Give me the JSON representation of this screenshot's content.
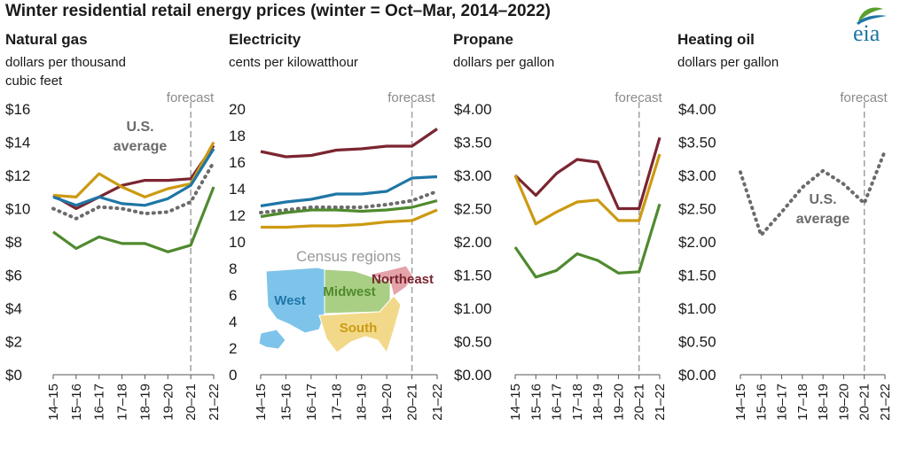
{
  "title": "Winter residential retail energy prices (winter = Oct–Mar, 2014–2022)",
  "logo_text": "eia",
  "colors": {
    "northeast": "#7b2530",
    "west": "#1f76a6",
    "midwest": "#4f8a2e",
    "south": "#cc9a12",
    "us_average": "#6b6b6b",
    "forecast_line": "#a0a0a0",
    "map_west": "#7ec4ea",
    "map_midwest": "#a9cf84",
    "map_south": "#f2d98a",
    "map_northeast": "#e3a3a8",
    "logo_leaf": "#5aa02c",
    "logo_blue": "#1f76a6"
  },
  "panels": [
    {
      "name": "Natural gas",
      "unit_lines": [
        "dollars per thousand",
        "cubic feet"
      ]
    },
    {
      "name": "Electricity",
      "unit_lines": [
        "cents per kilowatthour"
      ]
    },
    {
      "name": "Propane",
      "unit_lines": [
        "dollars per gallon"
      ]
    },
    {
      "name": "Heating oil",
      "unit_lines": [
        "dollars per gallon"
      ]
    }
  ],
  "chart_data": [
    {
      "type": "line",
      "title": "Natural gas",
      "ylabel": "dollars per thousand cubic feet",
      "categories": [
        "14–15",
        "15–16",
        "16–17",
        "17–18",
        "18–19",
        "19–20",
        "20–21",
        "21–22"
      ],
      "ylim": [
        0,
        16
      ],
      "yticks": [
        0,
        2,
        4,
        6,
        8,
        10,
        12,
        14,
        16
      ],
      "ytick_labels": [
        "$0",
        "$2",
        "$4",
        "$6",
        "$8",
        "$10",
        "$12",
        "$14",
        "$16"
      ],
      "forecast_label": "forecast",
      "forecast_at": "20–21",
      "series": [
        {
          "region": "northeast",
          "style": "solid",
          "values": [
            10.8,
            10.0,
            10.7,
            11.4,
            11.7,
            11.7,
            11.8,
            13.8
          ]
        },
        {
          "region": "south",
          "style": "solid",
          "values": [
            10.8,
            10.7,
            12.1,
            11.3,
            10.7,
            11.2,
            11.5,
            14.0
          ]
        },
        {
          "region": "west",
          "style": "solid",
          "values": [
            10.7,
            10.2,
            10.7,
            10.3,
            10.2,
            10.6,
            11.4,
            13.6
          ]
        },
        {
          "region": "us_average",
          "style": "dotted",
          "values": [
            10.0,
            9.4,
            10.1,
            10.0,
            9.7,
            9.8,
            10.4,
            12.8
          ]
        },
        {
          "region": "midwest",
          "style": "solid",
          "values": [
            8.6,
            7.6,
            8.3,
            7.9,
            7.9,
            7.4,
            7.8,
            11.3
          ]
        }
      ],
      "annotations": [
        {
          "text_lines": [
            "U.S.",
            "average"
          ],
          "series": "us_average"
        }
      ]
    },
    {
      "type": "line",
      "title": "Electricity",
      "ylabel": "cents per kilowatthour",
      "categories": [
        "14–15",
        "15–16",
        "16–17",
        "17–18",
        "18–19",
        "19–20",
        "20–21",
        "21–22"
      ],
      "ylim": [
        0,
        20
      ],
      "yticks": [
        0,
        2,
        4,
        6,
        8,
        10,
        12,
        14,
        16,
        18,
        20
      ],
      "ytick_labels": [
        "0",
        "2",
        "4",
        "6",
        "8",
        "10",
        "12",
        "14",
        "16",
        "18",
        "20"
      ],
      "forecast_label": "forecast",
      "forecast_at": "20–21",
      "series": [
        {
          "region": "northeast",
          "style": "solid",
          "values": [
            16.8,
            16.4,
            16.5,
            16.9,
            17.0,
            17.2,
            17.2,
            18.5
          ]
        },
        {
          "region": "west",
          "style": "solid",
          "values": [
            12.7,
            13.0,
            13.2,
            13.6,
            13.6,
            13.8,
            14.8,
            14.9
          ]
        },
        {
          "region": "us_average",
          "style": "dotted",
          "values": [
            12.2,
            12.4,
            12.6,
            12.6,
            12.6,
            12.8,
            13.1,
            13.8
          ]
        },
        {
          "region": "midwest",
          "style": "solid",
          "values": [
            11.9,
            12.2,
            12.4,
            12.4,
            12.3,
            12.4,
            12.6,
            13.1
          ]
        },
        {
          "region": "south",
          "style": "solid",
          "values": [
            11.1,
            11.1,
            11.2,
            11.2,
            11.3,
            11.5,
            11.6,
            12.4
          ]
        }
      ],
      "inset_map": {
        "title": "Census regions",
        "regions": [
          {
            "key": "west",
            "label": "West"
          },
          {
            "key": "midwest",
            "label": "Midwest"
          },
          {
            "key": "northeast",
            "label": "Northeast"
          },
          {
            "key": "south",
            "label": "South"
          }
        ]
      }
    },
    {
      "type": "line",
      "title": "Propane",
      "ylabel": "dollars per gallon",
      "categories": [
        "14–15",
        "15–16",
        "16–17",
        "17–18",
        "18–19",
        "19–20",
        "20–21",
        "21–22"
      ],
      "ylim": [
        0,
        4
      ],
      "yticks": [
        0,
        0.5,
        1,
        1.5,
        2,
        2.5,
        3,
        3.5,
        4
      ],
      "ytick_labels": [
        "$0.00",
        "$0.50",
        "$1.00",
        "$1.50",
        "$2.00",
        "$2.50",
        "$3.00",
        "$3.50",
        "$4.00"
      ],
      "forecast_label": "forecast",
      "forecast_at": "20–21",
      "series": [
        {
          "region": "northeast",
          "style": "solid",
          "values": [
            3.0,
            2.7,
            3.03,
            3.24,
            3.2,
            2.5,
            2.5,
            3.57
          ]
        },
        {
          "region": "south",
          "style": "solid",
          "values": [
            3.0,
            2.27,
            2.45,
            2.6,
            2.63,
            2.32,
            2.32,
            3.32
          ]
        },
        {
          "region": "midwest",
          "style": "solid",
          "values": [
            1.92,
            1.47,
            1.57,
            1.82,
            1.72,
            1.53,
            1.55,
            2.57
          ]
        }
      ]
    },
    {
      "type": "line",
      "title": "Heating oil",
      "ylabel": "dollars per gallon",
      "categories": [
        "14–15",
        "15–16",
        "16–17",
        "17–18",
        "18–19",
        "19–20",
        "20–21",
        "21–22"
      ],
      "ylim": [
        0,
        4
      ],
      "yticks": [
        0,
        0.5,
        1,
        1.5,
        2,
        2.5,
        3,
        3.5,
        4
      ],
      "ytick_labels": [
        "$0.00",
        "$0.50",
        "$1.00",
        "$1.50",
        "$2.00",
        "$2.50",
        "$3.00",
        "$3.50",
        "$4.00"
      ],
      "forecast_label": "forecast",
      "forecast_at": "20–21",
      "series": [
        {
          "region": "us_average",
          "style": "dotted",
          "values": [
            3.05,
            2.1,
            2.45,
            2.82,
            3.07,
            2.87,
            2.58,
            3.37
          ]
        }
      ],
      "annotations": [
        {
          "text_lines": [
            "U.S.",
            "average"
          ],
          "series": "us_average"
        }
      ]
    }
  ]
}
